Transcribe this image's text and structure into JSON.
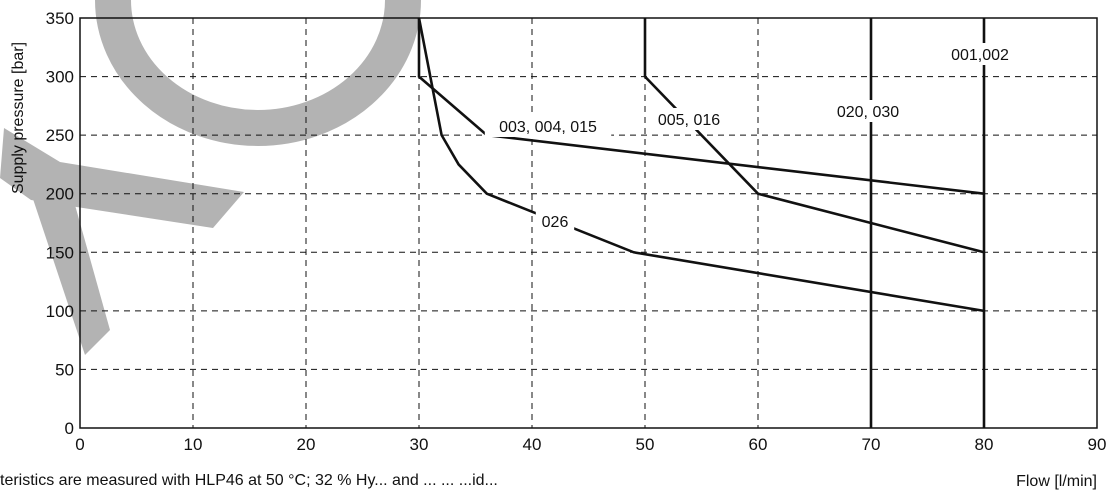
{
  "chart_data": {
    "type": "line",
    "xlabel": "Flow [l/min]",
    "ylabel": "Supply pressure [bar]",
    "xlim": [
      0,
      90
    ],
    "ylim": [
      0,
      350
    ],
    "x_ticks": [
      0,
      10,
      20,
      30,
      40,
      50,
      60,
      70,
      80,
      90
    ],
    "y_ticks": [
      0,
      50,
      100,
      150,
      200,
      250,
      300,
      350
    ],
    "grid": true,
    "grid_style": "dashed",
    "series": [
      {
        "name": "001,002",
        "points": [
          [
            80,
            350
          ],
          [
            80,
            0
          ]
        ]
      },
      {
        "name": "020, 030",
        "points": [
          [
            70,
            350
          ],
          [
            70,
            0
          ]
        ]
      },
      {
        "name": "005, 016",
        "points": [
          [
            50,
            350
          ],
          [
            50,
            300
          ],
          [
            60,
            200
          ],
          [
            80,
            150
          ]
        ]
      },
      {
        "name": "003, 004, 015",
        "points": [
          [
            30,
            350
          ],
          [
            30,
            300
          ],
          [
            36,
            250
          ],
          [
            80,
            200
          ]
        ]
      },
      {
        "name": "026",
        "points": [
          [
            30,
            350
          ],
          [
            32,
            250
          ],
          [
            33.5,
            225
          ],
          [
            36,
            200
          ],
          [
            49,
            150
          ],
          [
            80,
            100
          ]
        ]
      }
    ]
  },
  "footnote": "teristics are measured with HLP46 at 50 °C; 32 % Hy... and ... ... ...id...",
  "watermark": {
    "color": "#b3b3b3"
  },
  "colors": {
    "line": "#111111",
    "grid": "#111111",
    "background": "#ffffff"
  }
}
